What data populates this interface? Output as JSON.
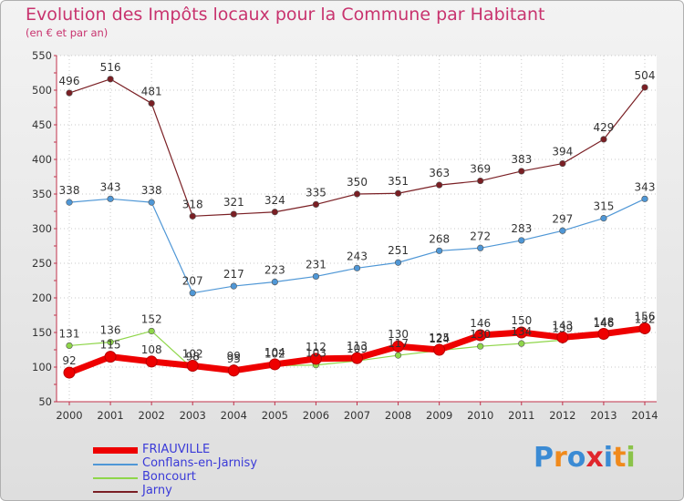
{
  "title": "Evolution des Impôts locaux pour la Commune par Habitant",
  "subtitle": "(en € et par an)",
  "logo": {
    "text": "Proxiti",
    "letters": [
      "P",
      "r",
      "o",
      "x",
      "i",
      "t",
      "i"
    ],
    "colors": [
      "#3b8bd4",
      "#f08a1c",
      "#3b8bd4",
      "#e0262c",
      "#3b8bd4",
      "#f08a1c",
      "#8bc34a"
    ]
  },
  "chart_data": {
    "type": "line",
    "title": "Evolution des Impôts locaux pour la Commune par Habitant",
    "ylabel": "(en € et par an)",
    "xlabel": "",
    "ylim": [
      50,
      550
    ],
    "yticks": [
      50,
      100,
      150,
      200,
      250,
      300,
      350,
      400,
      450,
      500,
      550
    ],
    "categories": [
      "2000",
      "2001",
      "2002",
      "2003",
      "2004",
      "2005",
      "2006",
      "2007",
      "2008",
      "2009",
      "2010",
      "2011",
      "2012",
      "2013",
      "2014"
    ],
    "grid": true,
    "legend_position": "bottom-left",
    "series": [
      {
        "name": "Jarny",
        "color": "#7a1f24",
        "values": [
          496,
          516,
          481,
          318,
          321,
          324,
          335,
          350,
          351,
          363,
          369,
          383,
          394,
          429,
          504
        ]
      },
      {
        "name": "Conflans-en-Jarnisy",
        "color": "#4f97d6",
        "values": [
          338,
          343,
          338,
          207,
          217,
          223,
          231,
          243,
          251,
          268,
          272,
          283,
          297,
          315,
          343
        ]
      },
      {
        "name": "Boncourt",
        "color": "#8fd64a",
        "values": [
          131,
          136,
          152,
          98,
          99,
          102,
          103,
          109,
          117,
          124,
          130,
          134,
          139,
          146,
          152
        ]
      },
      {
        "name": "FRIAUVILLE",
        "color": "#ee0000",
        "values": [
          92,
          115,
          108,
          102,
          95,
          104,
          112,
          113,
          130,
          125,
          146,
          150,
          143,
          148,
          156
        ]
      }
    ]
  }
}
